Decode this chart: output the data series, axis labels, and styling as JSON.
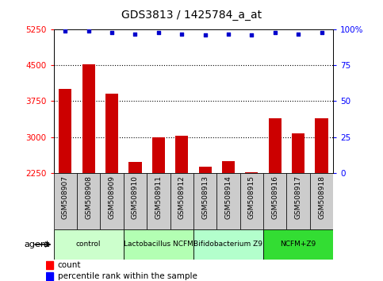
{
  "title": "GDS3813 / 1425784_a_at",
  "samples": [
    "GSM508907",
    "GSM508908",
    "GSM508909",
    "GSM508910",
    "GSM508911",
    "GSM508912",
    "GSM508913",
    "GSM508914",
    "GSM508915",
    "GSM508916",
    "GSM508917",
    "GSM508918"
  ],
  "counts": [
    4000,
    4520,
    3900,
    2480,
    3000,
    3020,
    2380,
    2500,
    2270,
    3400,
    3080,
    3400
  ],
  "percentile": [
    99,
    99,
    98,
    97,
    98,
    97,
    96,
    97,
    96,
    98,
    97,
    98
  ],
  "bar_color": "#cc0000",
  "dot_color": "#0000cc",
  "ylim_left": [
    2250,
    5250
  ],
  "ylim_right": [
    0,
    100
  ],
  "yticks_left": [
    2250,
    3000,
    3750,
    4500,
    5250
  ],
  "yticks_right": [
    0,
    25,
    50,
    75,
    100
  ],
  "ytick_labels_right": [
    "0",
    "25",
    "50",
    "75",
    "100%"
  ],
  "groups": [
    {
      "label": "control",
      "start": 0,
      "end": 3,
      "color": "#ccffcc"
    },
    {
      "label": "Lactobacillus NCFM",
      "start": 3,
      "end": 6,
      "color": "#b3ffb3"
    },
    {
      "label": "Bifidobacterium Z9",
      "start": 6,
      "end": 9,
      "color": "#b3ffcc"
    },
    {
      "label": "NCFM+Z9",
      "start": 9,
      "end": 12,
      "color": "#33dd33"
    }
  ],
  "agent_label": "agent",
  "legend_count_label": "count",
  "legend_pct_label": "percentile rank within the sample",
  "background_color": "#ffffff",
  "xtick_bg_color": "#cccccc",
  "grid_color": "#000000",
  "grid_dotted_at": [
    3000,
    3750,
    4500
  ]
}
